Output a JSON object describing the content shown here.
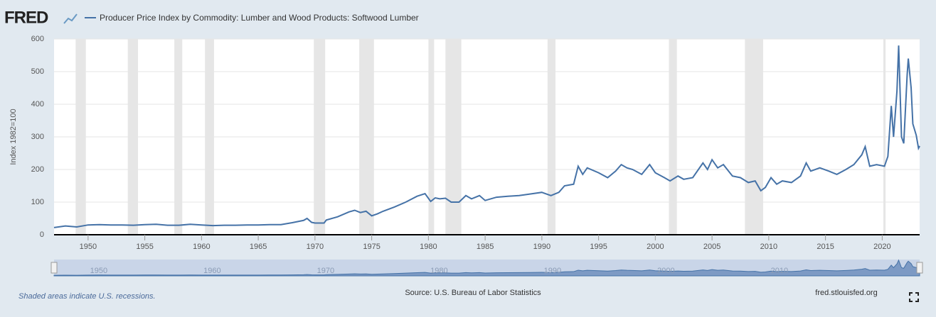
{
  "brand": "FRED",
  "chart_data": {
    "type": "line",
    "y_label": "Index 1982=100",
    "series": [
      {
        "name": "Producer Price Index by Commodity: Lumber and Wood Products: Softwood Lumber",
        "color": "#4572a7",
        "x": [
          1947,
          1948,
          1949,
          1950,
          1951,
          1952,
          1953,
          1954,
          1955,
          1956,
          1957,
          1958,
          1959,
          1960,
          1961,
          1962,
          1963,
          1964,
          1965,
          1966,
          1967,
          1968,
          1969,
          1969.3,
          1969.7,
          1970,
          1970.8,
          1971,
          1972,
          1973,
          1973.5,
          1974,
          1974.5,
          1975,
          1975.5,
          1976,
          1977,
          1978,
          1979,
          1979.7,
          1980.2,
          1980.6,
          1981,
          1981.5,
          1982,
          1982.7,
          1983.3,
          1983.8,
          1984.5,
          1985,
          1986,
          1987,
          1988,
          1989,
          1990,
          1990.8,
          1991.5,
          1992,
          1992.8,
          1993.2,
          1993.6,
          1994,
          1995,
          1995.8,
          1996.5,
          1997,
          1997.5,
          1998,
          1998.8,
          1999.5,
          2000,
          2000.8,
          2001.3,
          2002,
          2002.5,
          2003.3,
          2004.2,
          2004.6,
          2005,
          2005.5,
          2006,
          2006.8,
          2007.5,
          2008.2,
          2008.8,
          2009.3,
          2009.7,
          2010.2,
          2010.7,
          2011.2,
          2012,
          2012.8,
          2013.3,
          2013.7,
          2014.5,
          2015.3,
          2016,
          2016.8,
          2017.5,
          2018.2,
          2018.5,
          2018.9,
          2019.5,
          2020.2,
          2020.5,
          2020.8,
          2021,
          2021.3,
          2021.45,
          2021.7,
          2021.9,
          2022.2,
          2022.3,
          2022.55,
          2022.7,
          2023,
          2023.2,
          2023.3
        ],
        "values": [
          22,
          27,
          24,
          30,
          31,
          30,
          30,
          29,
          31,
          32,
          29,
          29,
          32,
          30,
          28,
          29,
          29,
          30,
          30,
          31,
          31,
          37,
          44,
          50,
          38,
          36,
          36,
          45,
          55,
          70,
          75,
          68,
          72,
          58,
          64,
          72,
          85,
          100,
          118,
          126,
          102,
          113,
          110,
          112,
          100,
          100,
          120,
          110,
          120,
          105,
          115,
          118,
          120,
          125,
          130,
          120,
          130,
          150,
          155,
          210,
          185,
          205,
          190,
          175,
          195,
          215,
          205,
          200,
          185,
          215,
          190,
          175,
          165,
          180,
          170,
          175,
          220,
          200,
          230,
          205,
          215,
          180,
          175,
          160,
          165,
          135,
          145,
          175,
          155,
          165,
          160,
          180,
          220,
          195,
          205,
          195,
          185,
          200,
          215,
          245,
          270,
          210,
          215,
          210,
          240,
          395,
          300,
          440,
          580,
          300,
          280,
          490,
          540,
          450,
          340,
          305,
          265,
          272
        ]
      }
    ],
    "recessions": [
      [
        1948.9,
        1949.8
      ],
      [
        1953.5,
        1954.4
      ],
      [
        1957.6,
        1958.3
      ],
      [
        1960.3,
        1961.1
      ],
      [
        1969.9,
        1970.9
      ],
      [
        1973.9,
        1975.2
      ],
      [
        1980,
        1980.5
      ],
      [
        1981.5,
        1982.9
      ],
      [
        1990.5,
        1991.2
      ],
      [
        2001.2,
        2001.9
      ],
      [
        2007.9,
        2009.5
      ],
      [
        2020.1,
        2020.3
      ]
    ],
    "xlim": [
      1947,
      2023.3
    ],
    "xticks": [
      1950,
      1955,
      1960,
      1965,
      1970,
      1975,
      1980,
      1985,
      1990,
      1995,
      2000,
      2005,
      2010,
      2015,
      2020
    ],
    "ylim": [
      0,
      600
    ],
    "yticks": [
      0,
      100,
      200,
      300,
      400,
      500,
      600
    ],
    "grid": true,
    "navigator_xticks": [
      1950,
      1960,
      1970,
      1980,
      1990,
      2000,
      2010
    ]
  },
  "footer": {
    "note": "Shaded areas indicate U.S. recessions.",
    "source": "Source: U.S. Bureau of Labor Statistics",
    "site": "fred.stlouisfed.org"
  }
}
